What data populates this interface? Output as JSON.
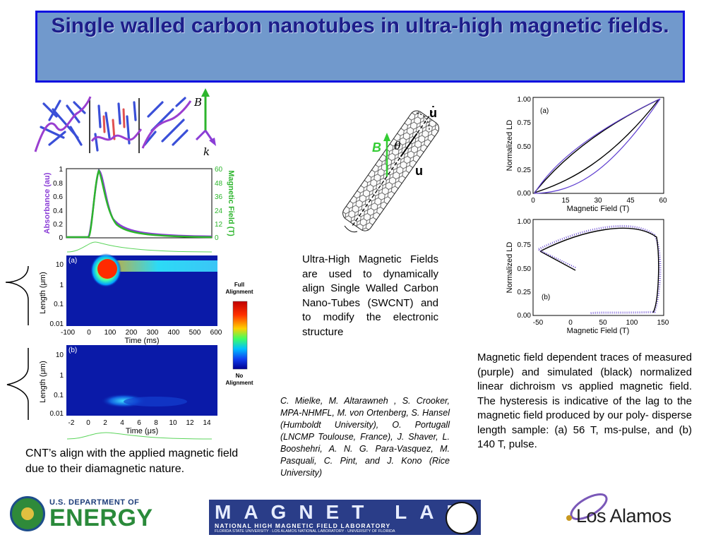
{
  "title": "Single walled carbon nanotubes in ultra-high magnetic fields.",
  "captions": {
    "left": "CNT’s align with the applied magnetic field due to their diamagnetic nature.",
    "middle": "Ultra-High Magnetic Fields are used to dynamically align Single Walled Carbon Nano-Tubes (SWCNT) and to modify the electronic structure",
    "right": "Magnetic field dependent traces of measured (purple) and simulated (black) normalized linear dichroism vs applied magnetic field. The hysteresis is indicative of the lag to the magnetic field produced by our poly- disperse length sample: (a) 56 T, ms-pulse, and (b) 140 T, pulse."
  },
  "credits": "C. Mielke, M. Altarawneh , S. Crooker, MPA-NHMFL, M. von Ortenberg, S. Hansel (Humboldt University), O. Portugall (LNCMP Toulouse, France), J. Shaver, L. Booshehri, A. N. G. Para-Vasquez, M. Pasquali, C. Pint, and J. Kono (Rice University)",
  "left_figure": {
    "vector_B": "B",
    "vector_k": "k",
    "pulse_chart": {
      "ylabel_left": "Absorbance (au)",
      "ylabel_right": "Magnetic Field (T)",
      "left_ticks": [
        "1",
        "0.8",
        "0.6",
        "0.4",
        "0.2",
        "0"
      ],
      "right_ticks": [
        "60",
        "48",
        "36",
        "24",
        "12",
        "0"
      ]
    },
    "heatmap_a": {
      "panel_label": "(a)",
      "ylabel": "Length (μm)",
      "yticks": [
        "10",
        "1",
        "0.1",
        "0.01"
      ],
      "xticks": [
        "-100",
        "0",
        "100",
        "200",
        "300",
        "400",
        "500",
        "600"
      ],
      "xlabel": "Time (ms)"
    },
    "heatmap_b": {
      "panel_label": "(b)",
      "ylabel": "Length (μm)",
      "yticks": [
        "10",
        "1",
        "0.1",
        "0.01"
      ],
      "xticks": [
        "-2",
        "0",
        "2",
        "4",
        "6",
        "8",
        "10",
        "12",
        "14"
      ],
      "xlabel": "Time (μs)"
    },
    "colorbar": {
      "top_label": [
        "Full",
        "Alignment"
      ],
      "bottom_label": [
        "No",
        "Alignment"
      ]
    }
  },
  "nanotube": {
    "label_B": "B",
    "label_theta": "θ",
    "label_u": "u",
    "label_udot": "u̇"
  },
  "right_charts": {
    "chart_a": {
      "panel_label": "(a)",
      "ylabel": "Normalized LD",
      "xlabel": "Magnetic Field (T)",
      "xticks": [
        "0",
        "15",
        "30",
        "45",
        "60"
      ],
      "yticks": [
        "1.00",
        "0.75",
        "0.50",
        "0.25",
        "0.00"
      ]
    },
    "chart_b": {
      "panel_label": "(b)",
      "ylabel": "Normalized LD",
      "xlabel": "Magnetic Field (T)",
      "xticks": [
        "-50",
        "0",
        "50",
        "100",
        "150"
      ],
      "yticks": [
        "1.00",
        "0.75",
        "0.50",
        "0.25",
        "0.00"
      ]
    }
  },
  "logos": {
    "doe_line1": "U.S. DEPARTMENT OF",
    "doe_line2": "ENERGY",
    "magnet_line1": "MAGNET LAB",
    "magnet_line2": "NATIONAL HIGH MAGNETIC FIELD LABORATORY",
    "magnet_line3": "FLORIDA STATE UNIVERSITY · LOS ALAMOS NATIONAL LABORATORY · UNIVERSITY OF FLORIDA",
    "los_alamos": "Los Alamos"
  },
  "colors": {
    "title_bg": "#7199cc",
    "title_border": "#1010e0",
    "title_text": "#1d1d8a",
    "purple": "#8a3dd6",
    "green": "#2db52d",
    "heat_bg": "#0a1aa8"
  }
}
